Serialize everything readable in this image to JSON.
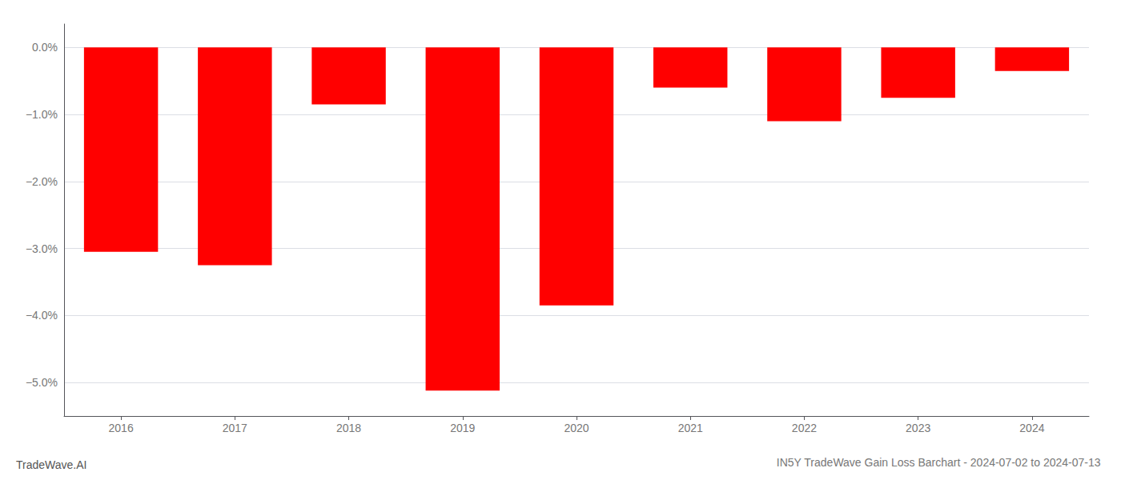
{
  "chart_data": {
    "type": "bar",
    "title": "IN5Y TradeWave Gain Loss Barchart - 2024-07-02 to 2024-07-13",
    "annotations": [
      "TradeWave.AI"
    ],
    "categories": [
      "2016",
      "2017",
      "2018",
      "2019",
      "2020",
      "2021",
      "2022",
      "2023",
      "2024"
    ],
    "values": [
      -3.05,
      -3.25,
      -0.85,
      -5.12,
      -3.85,
      -0.6,
      -1.1,
      -0.75,
      -0.35
    ],
    "color": "#ff0000",
    "ylim": [
      -5.5,
      0.35
    ],
    "yticks": [
      {
        "value": 0.0,
        "label": "0.0%"
      },
      {
        "value": -1.0,
        "label": "−1.0%"
      },
      {
        "value": -2.0,
        "label": "−2.0%"
      },
      {
        "value": -3.0,
        "label": "−3.0%"
      },
      {
        "value": -4.0,
        "label": "−4.0%"
      },
      {
        "value": -5.0,
        "label": "−5.0%"
      }
    ],
    "grid": true
  }
}
